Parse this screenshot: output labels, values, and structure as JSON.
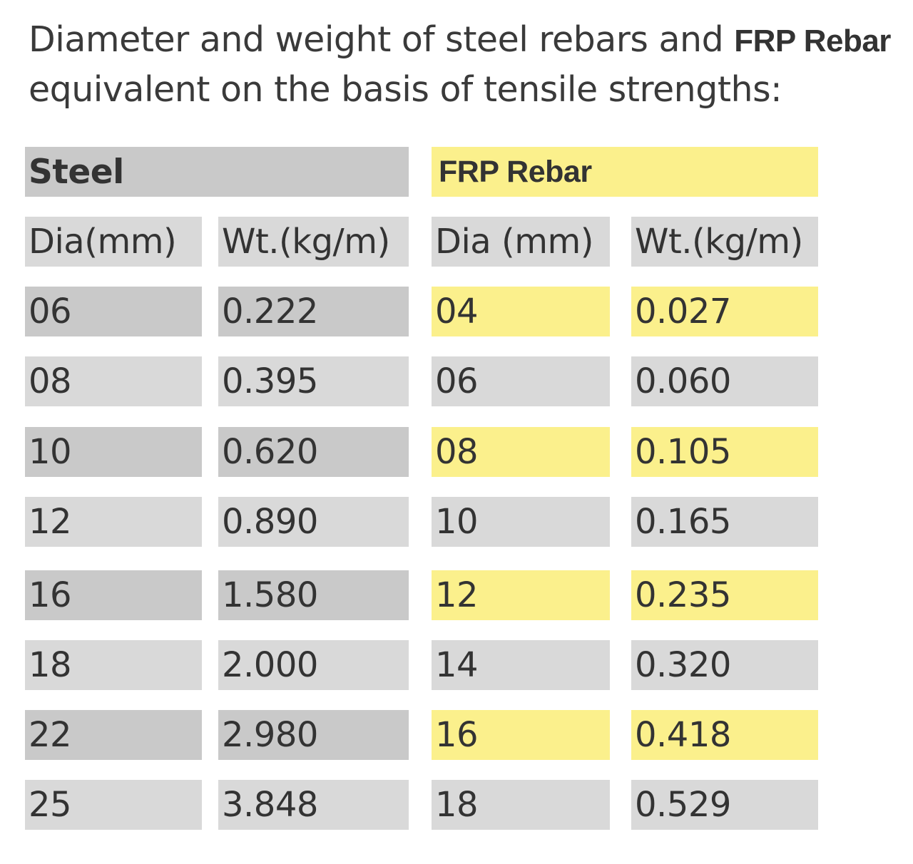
{
  "heading": {
    "text_before": "Diameter and weight of steel rebars and ",
    "brand": "FRP Rebar",
    "text_after": " equivalent on the basis of tensile strengths:"
  },
  "table": {
    "groups": [
      "Steel",
      "FRP Rebar"
    ],
    "columns": [
      "Dia(mm)",
      "Wt.(kg/m)",
      "Dia (mm)",
      "Wt.(kg/m)"
    ],
    "rows": [
      [
        "06",
        "0.222",
        "04",
        "0.027"
      ],
      [
        "08",
        "0.395",
        "06",
        "0.060"
      ],
      [
        "10",
        "0.620",
        "08",
        "0.105"
      ],
      [
        "12",
        "0.890",
        "10",
        "0.165"
      ],
      [
        "16",
        "1.580",
        "12",
        "0.235"
      ],
      [
        "18",
        "2.000",
        "14",
        "0.320"
      ],
      [
        "22",
        "2.980",
        "16",
        "0.418"
      ],
      [
        "25",
        "3.848",
        "18",
        "0.529"
      ]
    ]
  },
  "colors": {
    "steel_header": "#c9c9c9",
    "steel_dark_row": "#c9c9c9",
    "light_row": "#d9d9d9",
    "frp_highlight": "#fbf08c",
    "text": "#333333"
  }
}
